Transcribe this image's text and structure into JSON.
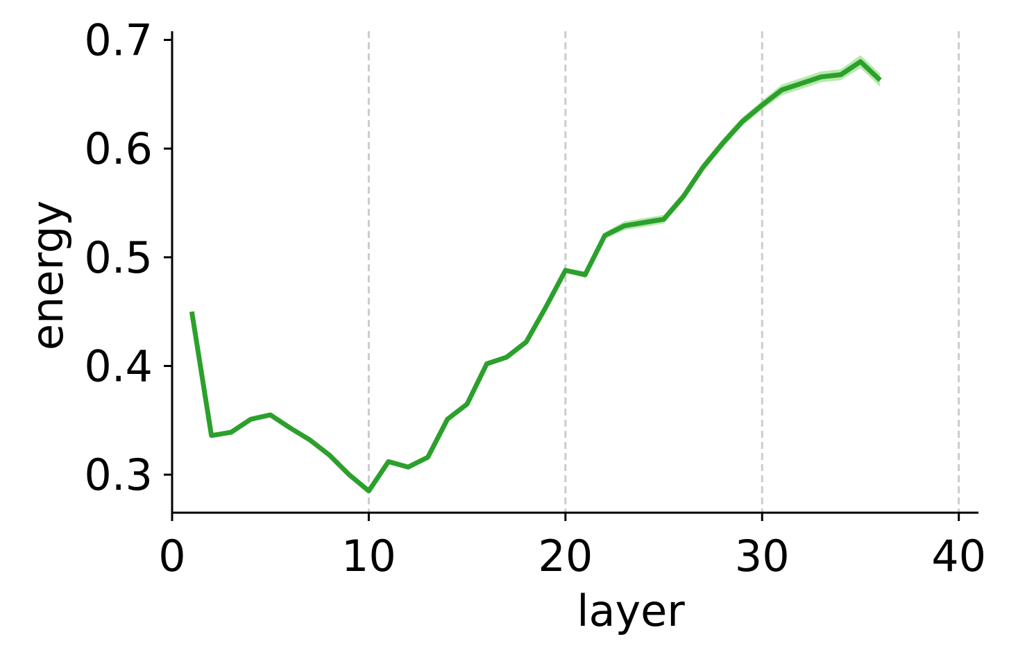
{
  "chart_data": {
    "type": "line",
    "title": "",
    "xlabel": "layer",
    "ylabel": "energy",
    "xlim": [
      0,
      41
    ],
    "ylim": [
      0.265,
      0.708
    ],
    "xticks": [
      0,
      10,
      20,
      30,
      40
    ],
    "xtick_labels": [
      "0",
      "10",
      "20",
      "30",
      "40"
    ],
    "yticks": [
      0.3,
      0.4,
      0.5,
      0.6,
      0.7
    ],
    "ytick_labels": [
      "0.3",
      "0.4",
      "0.5",
      "0.6",
      "0.7"
    ],
    "grid": "x-dashed",
    "legend": "none",
    "series": [
      {
        "color": "#2ca02c",
        "band_color": "#98df8a",
        "x": [
          1,
          2,
          3,
          4,
          5,
          6,
          7,
          8,
          9,
          10,
          11,
          12,
          13,
          14,
          15,
          16,
          17,
          18,
          19,
          20,
          21,
          22,
          23,
          24,
          25,
          26,
          27,
          28,
          29,
          30,
          31,
          32,
          33,
          34,
          35,
          36
        ],
        "y": [
          0.45,
          0.336,
          0.339,
          0.351,
          0.355,
          0.343,
          0.332,
          0.318,
          0.3,
          0.285,
          0.312,
          0.307,
          0.316,
          0.351,
          0.365,
          0.402,
          0.408,
          0.422,
          0.454,
          0.488,
          0.484,
          0.52,
          0.529,
          0.532,
          0.535,
          0.556,
          0.583,
          0.605,
          0.625,
          0.64,
          0.654,
          0.66,
          0.666,
          0.668,
          0.68,
          0.663
        ],
        "err": [
          0.0,
          0.0,
          0.0,
          0.0,
          0.0,
          0.0,
          0.0,
          0.0,
          0.0,
          0.001,
          0.001,
          0.001,
          0.001,
          0.001,
          0.001,
          0.001,
          0.002,
          0.002,
          0.002,
          0.002,
          0.003,
          0.003,
          0.004,
          0.004,
          0.004,
          0.004,
          0.004,
          0.004,
          0.004,
          0.004,
          0.005,
          0.005,
          0.005,
          0.005,
          0.006,
          0.006
        ]
      }
    ]
  }
}
